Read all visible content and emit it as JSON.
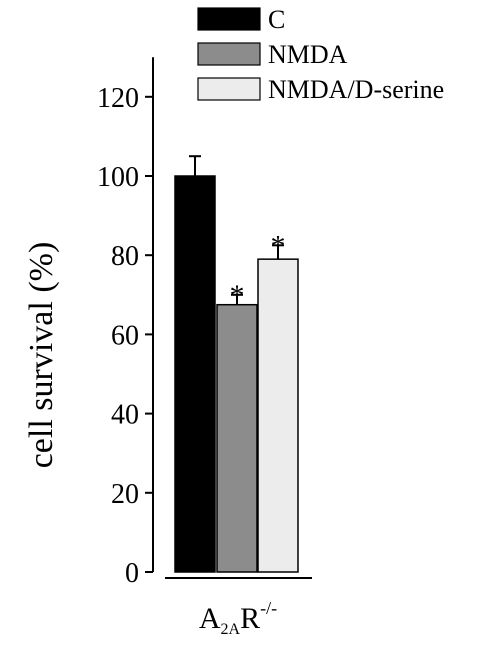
{
  "chart_data": {
    "type": "bar",
    "ylabel": "cell survival (%)",
    "ylim": [
      0,
      130
    ],
    "yticks": [
      0,
      20,
      40,
      60,
      80,
      100,
      120
    ],
    "xlabel": {
      "base": "A",
      "subscript": "2A",
      "mid": "R",
      "superscript": "-/-"
    },
    "legend_position": "top",
    "series": [
      {
        "name": "C",
        "value": 100,
        "error": 5,
        "color": "#000000",
        "significance": ""
      },
      {
        "name": "NMDA",
        "value": 67.5,
        "error": 2.5,
        "color": "#8c8c8c",
        "significance": "*"
      },
      {
        "name": "NMDA/D-serine",
        "value": 79,
        "error": 3.5,
        "color": "#ececec",
        "significance": "*"
      }
    ]
  }
}
